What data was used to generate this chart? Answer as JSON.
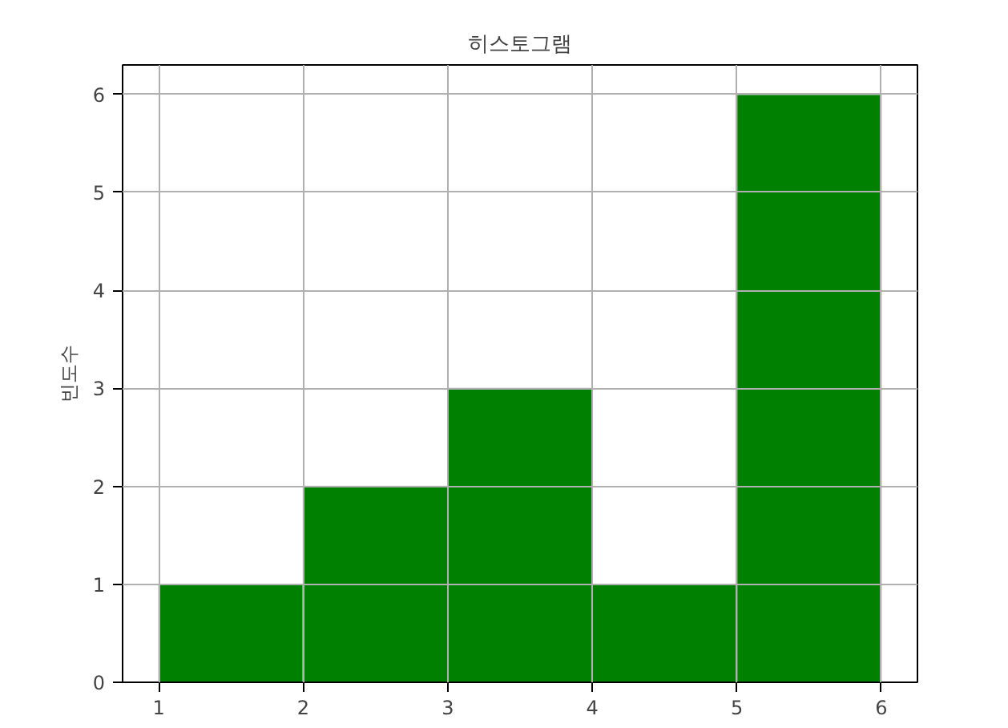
{
  "chart_data": {
    "type": "histogram",
    "title": "히스토그램",
    "ylabel": "빈도수",
    "bins": [
      1,
      2,
      3,
      4,
      5,
      6
    ],
    "values": [
      1,
      2,
      3,
      1,
      6
    ],
    "color": "#008000",
    "xlim": [
      0.75,
      6.25
    ],
    "ylim": [
      0,
      6.3
    ],
    "xticks": [
      1,
      2,
      3,
      4,
      5,
      6
    ],
    "yticks": [
      0,
      1,
      2,
      3,
      4,
      5,
      6
    ],
    "grid": true
  }
}
